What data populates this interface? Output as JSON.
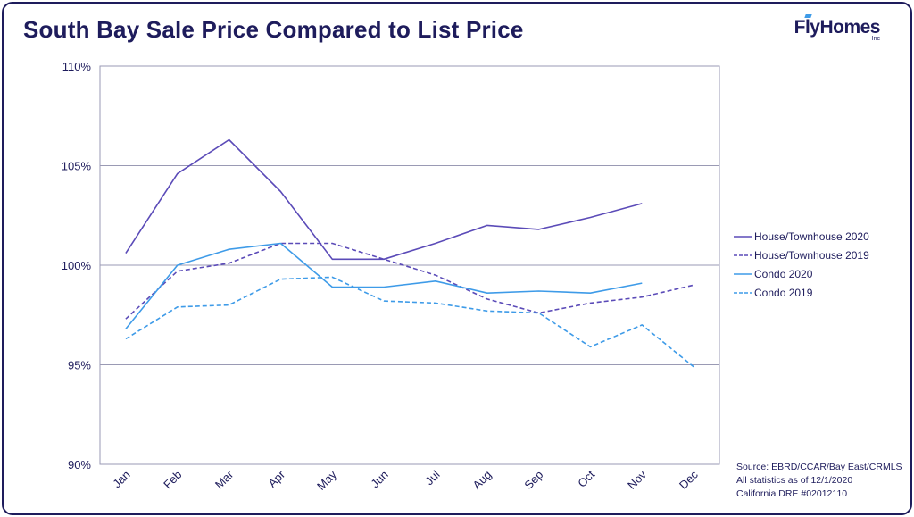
{
  "header": {
    "title": "South Bay Sale Price Compared to List Price",
    "logo_text": "FlyHomes",
    "logo_suffix": "Inc"
  },
  "source": {
    "line1": "Source: EBRD/CCAR/Bay East/CRMLS",
    "line2": "All statistics as of 12/1/2020",
    "line3": "California DRE #02012110"
  },
  "colors": {
    "navy": "#1e1c5c",
    "purple": "#5b4bb8",
    "blue": "#3e9be8",
    "grid": "#9a9ab4"
  },
  "chart_data": {
    "type": "line",
    "title": "South Bay Sale Price Compared to List Price",
    "xlabel": "",
    "ylabel": "",
    "categories": [
      "Jan",
      "Feb",
      "Mar",
      "Apr",
      "May",
      "Jun",
      "Jul",
      "Aug",
      "Sep",
      "Oct",
      "Nov",
      "Dec"
    ],
    "ylim": [
      90,
      110
    ],
    "yticks": [
      90,
      95,
      100,
      105,
      110
    ],
    "ytick_labels": [
      "90%",
      "95%",
      "100%",
      "105%",
      "110%"
    ],
    "grid": "horizontal",
    "legend_position": "right",
    "series": [
      {
        "name": "House/Townhouse 2020",
        "color": "#5b4bb8",
        "dashed": false,
        "values": [
          100.6,
          104.6,
          106.3,
          103.7,
          100.3,
          100.3,
          101.1,
          102.0,
          101.8,
          102.4,
          103.1,
          null
        ]
      },
      {
        "name": "House/Townhouse 2019",
        "color": "#5b4bb8",
        "dashed": true,
        "values": [
          97.3,
          99.7,
          100.1,
          101.1,
          101.1,
          100.3,
          99.5,
          98.3,
          97.6,
          98.1,
          98.4,
          99.0
        ]
      },
      {
        "name": "Condo 2020",
        "color": "#3e9be8",
        "dashed": false,
        "values": [
          96.8,
          100.0,
          100.8,
          101.1,
          98.9,
          98.9,
          99.2,
          98.6,
          98.7,
          98.6,
          99.1,
          null
        ]
      },
      {
        "name": "Condo 2019",
        "color": "#3e9be8",
        "dashed": true,
        "values": [
          96.3,
          97.9,
          98.0,
          99.3,
          99.4,
          98.2,
          98.1,
          97.7,
          97.6,
          95.9,
          97.0,
          94.9
        ]
      }
    ]
  }
}
